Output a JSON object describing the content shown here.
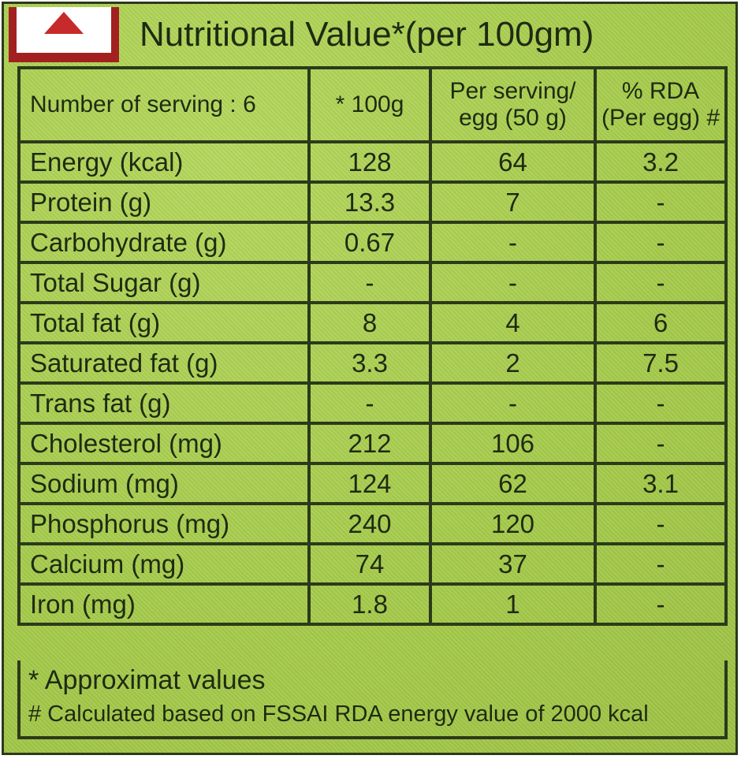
{
  "title": "Nutritional Value*(per 100gm)",
  "table": {
    "headers": [
      "Number of serving : 6",
      "* 100g",
      "Per serving/\negg (50 g)",
      "% RDA\n(Per egg) #"
    ],
    "rows": [
      [
        "Energy (kcal)",
        "128",
        "64",
        "3.2"
      ],
      [
        "Protein (g)",
        "13.3",
        "7",
        "-"
      ],
      [
        "Carbohydrate (g)",
        "0.67",
        "-",
        "-"
      ],
      [
        "Total Sugar (g)",
        "-",
        "-",
        "-"
      ],
      [
        "Total fat (g)",
        "8",
        "4",
        "6"
      ],
      [
        "Saturated fat (g)",
        "3.3",
        "2",
        "7.5"
      ],
      [
        "Trans fat (g)",
        "-",
        "-",
        "-"
      ],
      [
        "Cholesterol (mg)",
        "212",
        "106",
        "-"
      ],
      [
        "Sodium (mg)",
        "124",
        "62",
        "3.1"
      ],
      [
        "Phosphorus (mg)",
        "240",
        "120",
        "-"
      ],
      [
        "Calcium (mg)",
        "74",
        "37",
        "-"
      ],
      [
        "Iron (mg)",
        "1.8",
        "1",
        "-"
      ]
    ]
  },
  "footnotes": {
    "approx": "* Approximat values",
    "rda": "# Calculated based on FSSAI RDA energy value of 2000 kcal"
  },
  "colors": {
    "background": "#a9cf50",
    "border": "#2b3a1a",
    "logo_red": "#a32020"
  },
  "icons": {
    "logo": "red-triangle-logo"
  }
}
